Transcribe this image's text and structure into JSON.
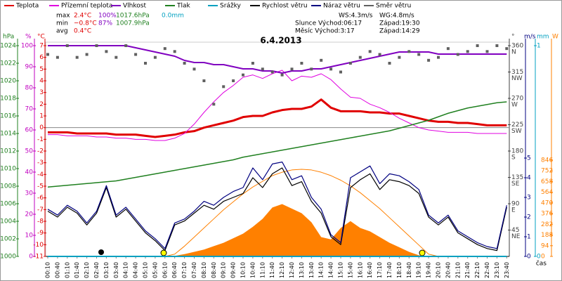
{
  "chart_data": {
    "type": "line",
    "title": "6.4.2013",
    "x_label": "čas",
    "categories": [
      "00:10",
      "00:40",
      "01:10",
      "01:40",
      "02:10",
      "02:40",
      "03:10",
      "03:40",
      "04:10",
      "04:40",
      "05:10",
      "05:40",
      "06:10",
      "06:40",
      "07:10",
      "07:40",
      "08:10",
      "08:40",
      "09:10",
      "09:40",
      "10:10",
      "10:40",
      "11:10",
      "11:40",
      "12:10",
      "12:40",
      "13:10",
      "13:40",
      "14:10",
      "14:40",
      "15:10",
      "15:40",
      "16:10",
      "16:40",
      "17:10",
      "17:40",
      "18:10",
      "18:40",
      "19:10",
      "19:40",
      "20:10",
      "20:40",
      "21:10",
      "21:40",
      "22:10",
      "22:40",
      "23:10",
      "23:40"
    ],
    "axes": {
      "p": {
        "unit": "hPa",
        "color": "#208020",
        "lim": [
          1000,
          1024
        ],
        "ticks": [
          1000,
          1002,
          1004,
          1006,
          1008,
          1010,
          1012,
          1014,
          1016,
          1018,
          1020,
          1022,
          1024
        ]
      },
      "h": {
        "unit": "%",
        "color": "#c000c0",
        "lim": [
          0,
          100
        ],
        "ticks": [
          0,
          10,
          20,
          30,
          40,
          50,
          60,
          70,
          80,
          90,
          100
        ]
      },
      "t": {
        "unit": "°C",
        "color": "#e00000",
        "lim": [
          -11,
          7
        ],
        "ticks": [
          -11,
          -10,
          -9,
          -8,
          -7,
          -6,
          -5,
          -4,
          -3,
          -2,
          -1,
          0,
          1,
          2,
          3,
          4,
          5,
          6,
          7
        ]
      },
      "d": {
        "unit": "°",
        "color": "#404040",
        "lim": [
          0,
          360
        ],
        "ticks": [
          45,
          90,
          135,
          180,
          225,
          270,
          315,
          360
        ],
        "tick_names": [
          "NE",
          "E",
          "SE",
          "S",
          "SW",
          "W",
          "NW",
          "N"
        ]
      },
      "w": {
        "unit": "m/s",
        "color": "#000080",
        "lim": [
          0,
          5
        ],
        "ticks": [
          0,
          1,
          2,
          3,
          4,
          5
        ]
      },
      "r": {
        "unit": "mm",
        "color": "#00a0c0",
        "lim": [
          0,
          1
        ],
        "ticks": [
          0,
          1
        ]
      },
      "s": {
        "unit": "W",
        "color": "#ff8000",
        "lim": [
          0,
          846
        ],
        "ticks": [
          0,
          94,
          188,
          282,
          376,
          470,
          564,
          658,
          752,
          846
        ]
      }
    },
    "series": [
      {
        "kind": "area",
        "axis": "s",
        "color": "#ff8000",
        "values": [
          0,
          0,
          0,
          0,
          0,
          0,
          0,
          0,
          0,
          0,
          0,
          0,
          0,
          5,
          20,
          40,
          60,
          90,
          120,
          160,
          200,
          260,
          330,
          430,
          460,
          420,
          380,
          300,
          170,
          150,
          250,
          310,
          250,
          220,
          170,
          120,
          80,
          40,
          10,
          0,
          0,
          0,
          0,
          0,
          0,
          0,
          0,
          0
        ]
      },
      {
        "kind": "line",
        "axis": "s",
        "color": "#ff8000",
        "values": [
          0,
          0,
          0,
          0,
          0,
          0,
          0,
          0,
          0,
          0,
          0,
          0,
          0,
          20,
          90,
          170,
          250,
          330,
          410,
          480,
          550,
          610,
          660,
          710,
          740,
          760,
          766,
          760,
          740,
          710,
          670,
          620,
          560,
          490,
          420,
          340,
          260,
          180,
          100,
          20,
          0,
          0,
          0,
          0,
          0,
          0,
          0,
          0
        ]
      },
      {
        "name": "Teplota",
        "kind": "line",
        "axis": "t",
        "color": "#e00000",
        "width": 3,
        "values": [
          -0.4,
          -0.4,
          -0.4,
          -0.5,
          -0.5,
          -0.5,
          -0.5,
          -0.6,
          -0.6,
          -0.6,
          -0.7,
          -0.8,
          -0.7,
          -0.6,
          -0.4,
          -0.3,
          0.0,
          0.2,
          0.4,
          0.6,
          0.9,
          1.0,
          1.0,
          1.3,
          1.5,
          1.6,
          1.6,
          1.8,
          2.4,
          1.7,
          1.4,
          1.4,
          1.4,
          1.3,
          1.3,
          1.2,
          1.2,
          1.0,
          0.8,
          0.6,
          0.5,
          0.5,
          0.4,
          0.4,
          0.3,
          0.2,
          0.2,
          0.2
        ]
      },
      {
        "name": "Přízemní teplota",
        "kind": "line",
        "axis": "t",
        "color": "#e000e0",
        "width": 1,
        "values": [
          -0.6,
          -0.6,
          -0.7,
          -0.7,
          -0.7,
          -0.8,
          -0.8,
          -0.9,
          -0.9,
          -1.0,
          -1.0,
          -1.1,
          -1.1,
          -0.9,
          -0.5,
          0.3,
          1.3,
          2.2,
          3.0,
          3.6,
          4.3,
          4.5,
          4.2,
          4.6,
          4.9,
          4.0,
          4.4,
          4.3,
          4.6,
          4.1,
          3.3,
          2.6,
          2.5,
          2.0,
          1.7,
          1.3,
          0.8,
          0.4,
          0.0,
          -0.2,
          -0.3,
          -0.4,
          -0.4,
          -0.4,
          -0.5,
          -0.5,
          -0.5,
          -0.5
        ]
      },
      {
        "name": "Vlhkost",
        "kind": "line",
        "axis": "h",
        "color": "#8000c0",
        "width": 2,
        "values": [
          100,
          100,
          100,
          100,
          100,
          100,
          100,
          100,
          100,
          99,
          98,
          97,
          96,
          95,
          93,
          92,
          92,
          91,
          91,
          90,
          89,
          89,
          88,
          88,
          87,
          88,
          88,
          89,
          89,
          90,
          91,
          92,
          93,
          94,
          95,
          96,
          97,
          97,
          97,
          97,
          96,
          96,
          96,
          96,
          96,
          96,
          96,
          96
        ]
      },
      {
        "name": "Tlak",
        "kind": "line",
        "axis": "p",
        "color": "#208020",
        "width": 1.5,
        "values": [
          1007.9,
          1008.0,
          1008.1,
          1008.2,
          1008.3,
          1008.4,
          1008.5,
          1008.6,
          1008.8,
          1009.0,
          1009.2,
          1009.4,
          1009.6,
          1009.8,
          1010.0,
          1010.2,
          1010.4,
          1010.6,
          1010.8,
          1011.0,
          1011.3,
          1011.5,
          1011.7,
          1011.9,
          1012.1,
          1012.3,
          1012.5,
          1012.7,
          1012.9,
          1013.1,
          1013.3,
          1013.5,
          1013.7,
          1013.9,
          1014.1,
          1014.3,
          1014.6,
          1014.9,
          1015.2,
          1015.5,
          1015.9,
          1016.3,
          1016.6,
          1016.9,
          1017.1,
          1017.3,
          1017.5,
          1017.6
        ]
      },
      {
        "name": "Srážky",
        "kind": "line",
        "axis": "r",
        "color": "#00a0c0",
        "width": 2,
        "values": [
          0,
          0,
          0,
          0,
          0,
          0,
          0,
          0,
          0,
          0,
          0,
          0,
          0,
          0,
          0,
          0,
          0,
          0,
          0,
          0,
          0,
          0,
          0,
          0,
          0,
          0,
          0,
          0,
          0,
          0,
          0,
          0,
          0,
          0,
          0,
          0,
          0,
          0,
          0,
          0,
          0,
          0,
          0,
          0,
          0,
          0,
          0,
          0
        ]
      },
      {
        "name": "Rychlost větru",
        "kind": "line",
        "axis": "w",
        "color": "#000000",
        "width": 1.2,
        "values": [
          2.3,
          2.0,
          2.5,
          2.2,
          1.6,
          2.2,
          3.5,
          2.0,
          2.4,
          1.8,
          1.2,
          0.8,
          0.3,
          1.6,
          1.8,
          2.2,
          2.6,
          2.4,
          2.8,
          3.0,
          3.2,
          4.0,
          3.5,
          4.2,
          4.5,
          3.6,
          3.8,
          2.8,
          2.2,
          1.0,
          0.6,
          3.5,
          3.9,
          4.2,
          3.4,
          3.9,
          3.8,
          3.6,
          3.2,
          2.0,
          1.6,
          2.0,
          1.2,
          0.9,
          0.6,
          0.4,
          0.3,
          2.5
        ]
      },
      {
        "name": "Náraz větru",
        "kind": "line",
        "axis": "w",
        "color": "#000080",
        "width": 1.2,
        "values": [
          2.4,
          2.1,
          2.6,
          2.3,
          1.7,
          2.3,
          3.6,
          2.1,
          2.5,
          1.9,
          1.3,
          0.9,
          0.4,
          1.7,
          1.9,
          2.3,
          2.8,
          2.6,
          3.0,
          3.3,
          3.5,
          4.5,
          3.9,
          4.7,
          4.8,
          3.9,
          4.1,
          3.0,
          2.4,
          1.1,
          0.7,
          4.0,
          4.3,
          4.6,
          3.7,
          4.2,
          4.1,
          3.8,
          3.4,
          2.1,
          1.7,
          2.1,
          1.3,
          1.0,
          0.7,
          0.5,
          0.4,
          2.6
        ]
      },
      {
        "name": "Směr větru",
        "kind": "scatter",
        "axis": "d",
        "color": "#606060",
        "values": [
          345,
          340,
          360,
          340,
          345,
          360,
          350,
          340,
          360,
          345,
          330,
          340,
          355,
          350,
          330,
          320,
          300,
          260,
          290,
          300,
          310,
          330,
          320,
          315,
          310,
          320,
          330,
          320,
          335,
          320,
          315,
          330,
          340,
          350,
          345,
          330,
          340,
          350,
          345,
          335,
          340,
          355,
          345,
          350,
          360,
          350,
          360,
          355
        ]
      }
    ],
    "stats": [
      {
        "label": "max",
        "items": [
          {
            "text": "2.4°C",
            "color": "#e00000"
          },
          {
            "text": "100%",
            "color": "#8000c0"
          },
          {
            "text": "1017.6hPa",
            "color": "#208020"
          },
          {
            "text": "0.0mm",
            "color": "#00a0c0"
          }
        ]
      },
      {
        "label": "min",
        "items": [
          {
            "text": "−0.8°C",
            "color": "#e00000"
          },
          {
            "text": "87%",
            "color": "#8000c0"
          },
          {
            "text": "1007.9hPa",
            "color": "#208020"
          }
        ]
      },
      {
        "label": "avg",
        "items": [
          {
            "text": "0.4°C",
            "color": "#e00000"
          }
        ]
      }
    ],
    "info": [
      "WS:4.3m/s",
      "WG:4.8m/s",
      "Slunce Východ:06:17",
      "Západ:19:30",
      "Měsíc Východ:3:17",
      "Západ:14:29"
    ]
  }
}
